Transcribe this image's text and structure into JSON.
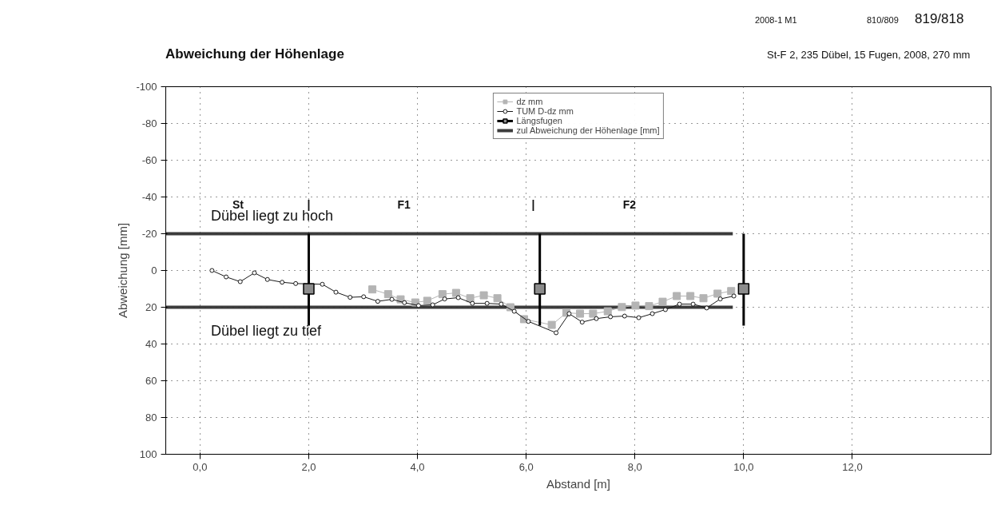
{
  "chart_data": {
    "type": "line",
    "title": "Abweichung der Höhenlage",
    "subtitle": "St-F 2, 235 Dübel, 15 Fugen, 2008, 270 mm",
    "xlabel": "Abstand [m]",
    "ylabel": "Abweichung [mm]",
    "xlim": [
      -0.63,
      14.55
    ],
    "xticks": [
      {
        "value": 0,
        "label": "0,0"
      },
      {
        "value": 2,
        "label": "2,0"
      },
      {
        "value": 4,
        "label": "4,0"
      },
      {
        "value": 6,
        "label": "6,0"
      },
      {
        "value": 8,
        "label": "8,0"
      },
      {
        "value": 10,
        "label": "10,0"
      },
      {
        "value": 12,
        "label": "12,0"
      }
    ],
    "ylim": [
      100,
      -100
    ],
    "yticks": [
      -100,
      -80,
      -60,
      -40,
      -20,
      0,
      20,
      40,
      60,
      80,
      100
    ],
    "grid": true,
    "legend": "top",
    "series": [
      {
        "name": "dz mm",
        "color": "#b4b4b4",
        "marker": "square",
        "x": [
          3.17,
          3.46,
          3.69,
          3.96,
          4.18,
          4.46,
          4.71,
          4.97,
          5.22,
          5.47,
          5.71,
          5.96,
          6.47,
          6.74,
          6.99,
          7.23,
          7.5,
          7.76,
          8.01,
          8.26,
          8.51,
          8.77,
          9.02,
          9.26,
          9.52,
          9.77
        ],
        "values": [
          10.3,
          12.9,
          15.7,
          17.4,
          16.5,
          12.9,
          12.2,
          15.1,
          13.5,
          15.1,
          20,
          26.5,
          29.6,
          23,
          23.5,
          23.5,
          22.2,
          19.9,
          19.1,
          19.4,
          17,
          13.9,
          13.9,
          15.1,
          12.6,
          11.2
        ]
      },
      {
        "name": "TUM D-dz mm",
        "color": "#1a1a1a",
        "marker": "circle",
        "x": [
          0.22,
          0.48,
          0.74,
          1.0,
          1.24,
          1.51,
          1.76,
          2.25,
          2.5,
          2.76,
          3.01,
          3.27,
          3.53,
          3.76,
          4.02,
          4.28,
          4.5,
          4.75,
          5.01,
          5.28,
          5.54,
          5.78,
          6.04,
          6.55,
          6.79,
          7.03,
          7.29,
          7.55,
          7.81,
          8.07,
          8.32,
          8.56,
          8.82,
          9.07,
          9.32,
          9.57,
          9.82
        ],
        "values": [
          0,
          3.5,
          6.1,
          1.3,
          4.9,
          6.4,
          7.1,
          7.5,
          11.8,
          14.6,
          14.3,
          16.8,
          15.7,
          17.5,
          19.1,
          18.7,
          15.5,
          14.8,
          17.9,
          17.9,
          18.3,
          22.2,
          27.7,
          33.9,
          23.5,
          28.1,
          26.2,
          25.2,
          24.8,
          25.7,
          23.5,
          21.3,
          18.3,
          18.3,
          20.4,
          15.5,
          13.9
        ]
      },
      {
        "name": "Längsfugen",
        "type": "scatter",
        "color": "#8c8c8c",
        "marker": "square",
        "x": [
          2.0,
          6.25,
          10.0
        ],
        "values": [
          10,
          10,
          10
        ],
        "errors": [
          [
            -20,
            30
          ],
          [
            -20,
            30
          ],
          [
            -20,
            30
          ]
        ]
      },
      {
        "name": "zul Abweichung der Höhenlage [mm]",
        "color": "#3c3c3c",
        "marker": "none",
        "x": [
          -0.63,
          9.8
        ],
        "values": [
          -20,
          -20
        ]
      },
      {
        "color": "#3c3c3c",
        "marker": "none",
        "x": [
          -0.63,
          9.8
        ],
        "values": [
          20,
          20
        ]
      }
    ],
    "annotations": [
      "2008-1 M1",
      "810/809",
      "819/818",
      "St",
      "|",
      "F1",
      "|",
      "F2",
      "Dübel liegt zu hoch",
      "Dübel liegt zu tief"
    ]
  }
}
